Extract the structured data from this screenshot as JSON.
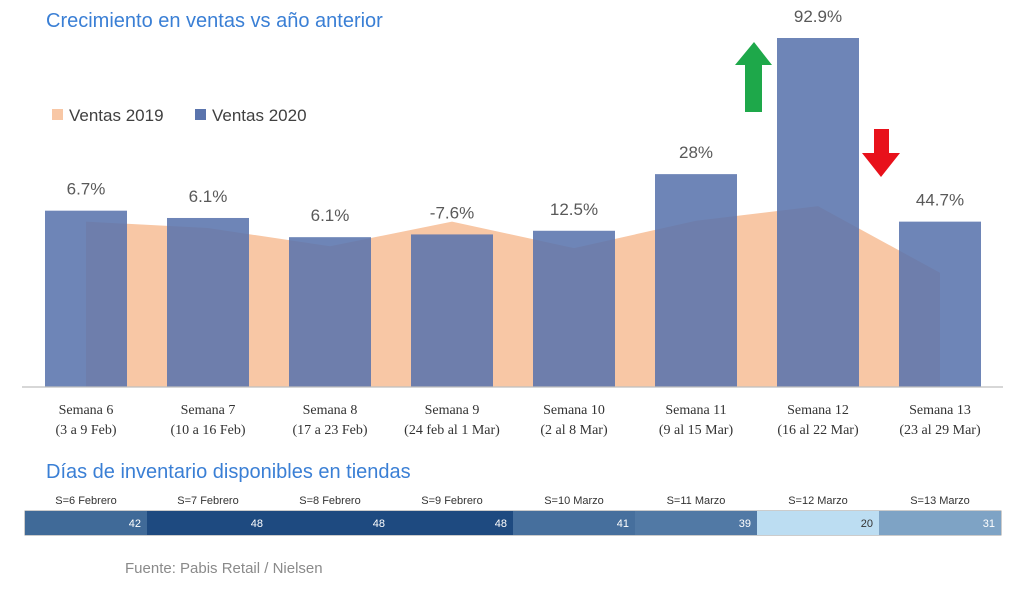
{
  "title": "Crecimiento en ventas vs año anterior",
  "colors": {
    "title": "#3a7fd5",
    "series_2019": "#f8c7a5",
    "series_2020": "#5a74ad",
    "arrow_up": "#1ea84a",
    "arrow_down": "#e8111b"
  },
  "chart_data": [
    {
      "type": "bar",
      "title": "Crecimiento en ventas vs año anterior",
      "xlabel": "",
      "ylabel": "",
      "categories": [
        [
          "Semana 6",
          "(3 a 9 Feb)"
        ],
        [
          "Semana 7",
          "(10 a 16 Feb)"
        ],
        [
          "Semana 8",
          "(17 a 23 Feb)"
        ],
        [
          "Semana 9",
          "(24 feb al 1 Mar)"
        ],
        [
          "Semana 10",
          "(2 al 8 Mar)"
        ],
        [
          "Semana 11",
          "(9 al 15 Mar)"
        ],
        [
          "Semana 12",
          "(16 al 22 Mar)"
        ],
        [
          "Semana 13",
          "(23 al 29 Mar)"
        ]
      ],
      "growth_labels": [
        "6.7%",
        "6.1%",
        "6.1%",
        "-7.6%",
        "12.5%",
        "28%",
        "92.9%",
        "44.7%"
      ],
      "series": [
        {
          "name": "Ventas 2019",
          "kind": "area",
          "values": [
            181,
            174,
            154,
            181,
            152,
            182,
            198,
            125
          ]
        },
        {
          "name": "Ventas 2020",
          "kind": "bar",
          "values": [
            193,
            185,
            164,
            167,
            171,
            233,
            382,
            181
          ]
        }
      ],
      "ylim": [
        0,
        382
      ],
      "legend": "top-left",
      "grid": false,
      "annotations": [
        {
          "type": "arrow-up",
          "color": "green",
          "near": "Semana 12"
        },
        {
          "type": "arrow-down",
          "color": "red",
          "near": "Semana 13"
        }
      ]
    },
    {
      "type": "table",
      "title": "Días de inventario disponibles en tiendas",
      "columns": [
        "S=6 Febrero",
        "S=7 Febrero",
        "S=8 Febrero",
        "S=9 Febrero",
        "S=10 Marzo",
        "S=11 Marzo",
        "S=12 Marzo",
        "S=13 Marzo"
      ],
      "values": [
        42,
        48,
        48,
        48,
        41,
        39,
        20,
        31
      ]
    }
  ],
  "source": "Fuente: Pabis Retail / Nielsen"
}
